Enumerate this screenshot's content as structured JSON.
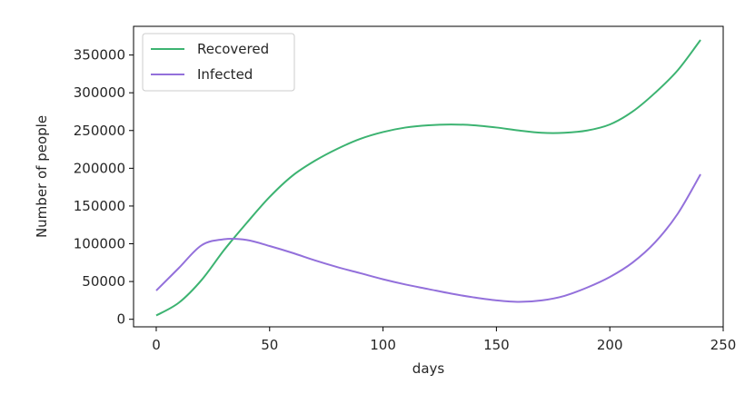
{
  "chart_data": {
    "type": "line",
    "title": "",
    "xlabel": "days",
    "ylabel": "Number of people",
    "xlim": [
      -10,
      250
    ],
    "ylim": [
      -10000,
      388000
    ],
    "xticks": [
      0,
      50,
      100,
      150,
      200,
      250
    ],
    "yticks": [
      0,
      50000,
      100000,
      150000,
      200000,
      250000,
      300000,
      350000
    ],
    "grid": false,
    "legend_position": "top-left",
    "series": [
      {
        "name": "Recovered",
        "color": "#3cb371",
        "x": [
          0,
          10,
          20,
          30,
          40,
          50,
          60,
          70,
          80,
          90,
          100,
          110,
          120,
          130,
          140,
          150,
          160,
          170,
          180,
          190,
          200,
          210,
          220,
          230,
          240
        ],
        "y": [
          5000,
          22000,
          52000,
          92000,
          128000,
          162000,
          190000,
          210000,
          226000,
          239000,
          248000,
          254000,
          257000,
          258000,
          257000,
          254000,
          250000,
          247000,
          247000,
          250000,
          258000,
          275000,
          300000,
          330000,
          370000
        ]
      },
      {
        "name": "Infected",
        "color": "#9370db",
        "x": [
          0,
          10,
          20,
          30,
          40,
          50,
          60,
          70,
          80,
          90,
          100,
          110,
          120,
          130,
          140,
          150,
          160,
          170,
          180,
          190,
          200,
          210,
          220,
          230,
          240
        ],
        "y": [
          38000,
          68000,
          98000,
          106000,
          105000,
          97000,
          88000,
          78000,
          69000,
          61000,
          53000,
          46000,
          40000,
          34000,
          29000,
          25000,
          23000,
          25000,
          31000,
          42000,
          56000,
          75000,
          102000,
          140000,
          192000
        ]
      }
    ]
  }
}
